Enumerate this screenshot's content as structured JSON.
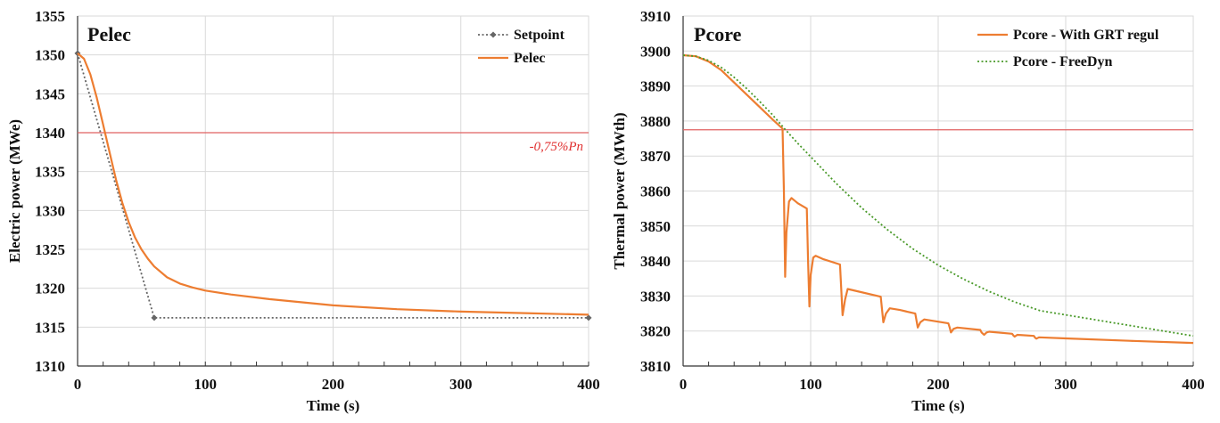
{
  "chart_data": [
    {
      "type": "line",
      "title": "Pelec",
      "xlabel": "Time (s)",
      "ylabel": "Electric power (MWe)",
      "xlim": [
        0,
        400
      ],
      "ylim": [
        1310,
        1355
      ],
      "x_ticks": [
        "0",
        "100",
        "200",
        "300",
        "400"
      ],
      "y_ticks": [
        "1310",
        "1315",
        "1320",
        "1325",
        "1330",
        "1335",
        "1340",
        "1345",
        "1350",
        "1355"
      ],
      "grid": true,
      "legend_position": "top-right",
      "series": [
        {
          "name": "Setpoint",
          "color": "#666666",
          "style": "dotted-markers",
          "points": [
            [
              0,
              1350.2
            ],
            [
              60,
              1316.2
            ],
            [
              400,
              1316.2
            ]
          ]
        },
        {
          "name": "Pelec",
          "color": "#ed7d31",
          "style": "solid",
          "points": [
            [
              0,
              1350.2
            ],
            [
              5,
              1349.5
            ],
            [
              10,
              1347.5
            ],
            [
              15,
              1344.5
            ],
            [
              20,
              1341.0
            ],
            [
              25,
              1337.5
            ],
            [
              30,
              1334.0
            ],
            [
              35,
              1331.0
            ],
            [
              40,
              1328.5
            ],
            [
              45,
              1326.5
            ],
            [
              50,
              1325.0
            ],
            [
              55,
              1323.8
            ],
            [
              60,
              1322.8
            ],
            [
              70,
              1321.4
            ],
            [
              80,
              1320.6
            ],
            [
              90,
              1320.1
            ],
            [
              100,
              1319.7
            ],
            [
              120,
              1319.2
            ],
            [
              150,
              1318.6
            ],
            [
              200,
              1317.8
            ],
            [
              250,
              1317.3
            ],
            [
              300,
              1317.0
            ],
            [
              350,
              1316.8
            ],
            [
              400,
              1316.6
            ]
          ]
        }
      ],
      "reference_lines": [
        {
          "y": 1340,
          "color": "#e06060",
          "label": "-0,75%Pn"
        }
      ]
    },
    {
      "type": "line",
      "title": "Pcore",
      "xlabel": "Time (s)",
      "ylabel": "Thermal power (MWth)",
      "xlim": [
        0,
        400
      ],
      "ylim": [
        3810,
        3910
      ],
      "x_ticks": [
        "0",
        "100",
        "200",
        "300",
        "400"
      ],
      "y_ticks": [
        "3810",
        "3820",
        "3830",
        "3840",
        "3850",
        "3860",
        "3870",
        "3880",
        "3890",
        "3900",
        "3910"
      ],
      "grid": true,
      "legend_position": "top-right",
      "series": [
        {
          "name": "Pcore - With GRT regul",
          "color": "#ed7d31",
          "style": "solid",
          "points": [
            [
              0,
              3898.8
            ],
            [
              10,
              3898.5
            ],
            [
              20,
              3897.0
            ],
            [
              30,
              3894.5
            ],
            [
              40,
              3891.0
            ],
            [
              50,
              3887.5
            ],
            [
              60,
              3884.0
            ],
            [
              70,
              3880.5
            ],
            [
              78,
              3877.8
            ],
            [
              79,
              3860.0
            ],
            [
              80,
              3835.5
            ],
            [
              81,
              3848.0
            ],
            [
              83,
              3857.0
            ],
            [
              85,
              3858.0
            ],
            [
              90,
              3856.5
            ],
            [
              97,
              3855.0
            ],
            [
              98,
              3840.0
            ],
            [
              99,
              3827.0
            ],
            [
              100,
              3836.0
            ],
            [
              102,
              3841.0
            ],
            [
              104,
              3841.5
            ],
            [
              110,
              3840.5
            ],
            [
              123,
              3839.0
            ],
            [
              124,
              3832.0
            ],
            [
              125,
              3824.5
            ],
            [
              127,
              3829.0
            ],
            [
              129,
              3832.0
            ],
            [
              135,
              3831.5
            ],
            [
              155,
              3829.8
            ],
            [
              156,
              3826.0
            ],
            [
              157,
              3822.5
            ],
            [
              159,
              3825.0
            ],
            [
              162,
              3826.5
            ],
            [
              170,
              3826.0
            ],
            [
              182,
              3825.0
            ],
            [
              183,
              3823.0
            ],
            [
              184,
              3821.0
            ],
            [
              186,
              3822.5
            ],
            [
              189,
              3823.3
            ],
            [
              208,
              3822.2
            ],
            [
              209,
              3821.0
            ],
            [
              210,
              3819.6
            ],
            [
              212,
              3820.6
            ],
            [
              215,
              3821.0
            ],
            [
              233,
              3820.3
            ],
            [
              234,
              3819.6
            ],
            [
              236,
              3818.9
            ],
            [
              238,
              3819.6
            ],
            [
              240,
              3819.8
            ],
            [
              258,
              3819.2
            ],
            [
              259,
              3818.7
            ],
            [
              260,
              3818.4
            ],
            [
              262,
              3818.9
            ],
            [
              275,
              3818.6
            ],
            [
              276,
              3818.1
            ],
            [
              277,
              3817.8
            ],
            [
              279,
              3818.2
            ],
            [
              300,
              3817.9
            ],
            [
              350,
              3817.2
            ],
            [
              400,
              3816.6
            ]
          ]
        },
        {
          "name": "Pcore - FreeDyn",
          "color": "#4a9a2a",
          "style": "dotted",
          "points": [
            [
              0,
              3898.8
            ],
            [
              10,
              3898.5
            ],
            [
              20,
              3897.3
            ],
            [
              30,
              3895.3
            ],
            [
              40,
              3892.5
            ],
            [
              50,
              3889.2
            ],
            [
              60,
              3885.6
            ],
            [
              70,
              3881.8
            ],
            [
              80,
              3877.6
            ],
            [
              90,
              3873.6
            ],
            [
              100,
              3869.8
            ],
            [
              120,
              3862.2
            ],
            [
              140,
              3855.2
            ],
            [
              160,
              3849.0
            ],
            [
              180,
              3843.5
            ],
            [
              200,
              3838.8
            ],
            [
              220,
              3834.8
            ],
            [
              240,
              3831.3
            ],
            [
              260,
              3828.3
            ],
            [
              280,
              3825.8
            ],
            [
              300,
              3830.0
            ],
            [
              320,
              3828.0
            ],
            [
              340,
              3826.2
            ],
            [
              360,
              3824.7
            ],
            [
              380,
              3823.4
            ],
            [
              400,
              3822.3
            ]
          ]
        }
      ],
      "reference_lines": [
        {
          "y": 3877.5,
          "color": "#e06060",
          "label": ""
        }
      ]
    }
  ]
}
